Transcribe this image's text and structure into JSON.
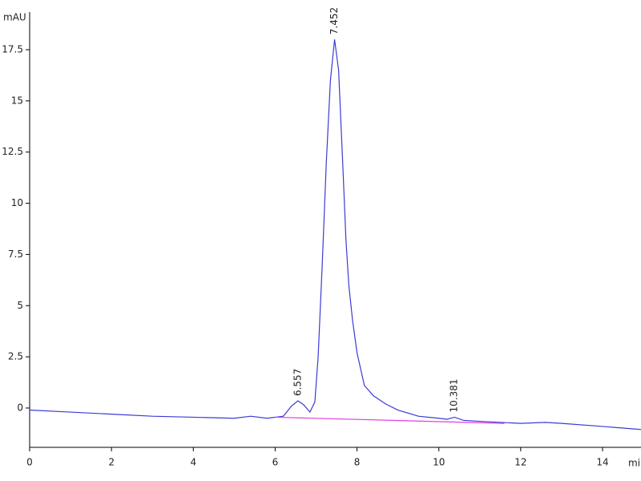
{
  "chart_data": {
    "type": "line",
    "y_label": "mAU",
    "x_label": "min",
    "xlim": [
      0,
      14.94
    ],
    "ylim": [
      -1.92,
      19.34
    ],
    "xticks": [
      0,
      2,
      4,
      6,
      8,
      10,
      12,
      14
    ],
    "yticks": [
      0,
      2.5,
      5,
      7.5,
      10,
      12.5,
      15,
      17.5
    ],
    "series": [
      {
        "color": "#3b3bd6",
        "x": [
          0,
          1,
          2,
          3,
          4,
          5,
          5.4,
          5.8,
          6.2,
          6.4,
          6.557,
          6.7,
          6.85,
          6.97,
          7.05,
          7.15,
          7.25,
          7.35,
          7.452,
          7.55,
          7.65,
          7.73,
          7.8,
          7.89,
          8.0,
          8.18,
          8.4,
          8.7,
          9,
          9.5,
          10,
          10.2,
          10.381,
          10.6,
          11,
          12,
          12.6,
          13,
          14,
          14.94
        ],
        "values": [
          -0.1,
          -0.2,
          -0.3,
          -0.4,
          -0.45,
          -0.5,
          -0.4,
          -0.5,
          -0.4,
          0.1,
          0.35,
          0.15,
          -0.2,
          0.3,
          2.5,
          7,
          12,
          16,
          18.0,
          16.5,
          12,
          8.2,
          6,
          4.3,
          2.7,
          1.1,
          0.6,
          0.2,
          -0.1,
          -0.4,
          -0.5,
          -0.55,
          -0.45,
          -0.6,
          -0.65,
          -0.75,
          -0.7,
          -0.75,
          -0.9,
          -1.05
        ]
      },
      {
        "color": "#e040e0",
        "x": [
          6.0,
          11.6
        ],
        "values": [
          -0.45,
          -0.75
        ]
      }
    ],
    "peaks": [
      {
        "x": 6.557,
        "y": 0.35
      },
      {
        "x": 7.452,
        "y": 18.0
      },
      {
        "x": 10.381,
        "y": -0.45
      }
    ]
  }
}
